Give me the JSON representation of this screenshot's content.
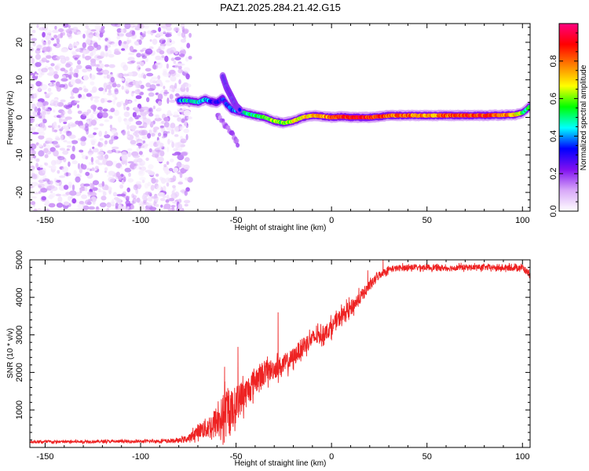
{
  "title": "PAZ1.2025.284.21.42.G15",
  "chart_data": [
    {
      "type": "heatmap",
      "title": "PAZ1.2025.284.21.42.G15",
      "xlabel": "Height of straight line (km)",
      "ylabel": "Frequency (Hz)",
      "xlim": [
        -158,
        104
      ],
      "ylim": [
        -25,
        25
      ],
      "x_ticks": [
        -150,
        -100,
        -50,
        0,
        50,
        100
      ],
      "y_ticks": [
        -20,
        -10,
        0,
        10,
        20
      ],
      "colorbar": {
        "label": "Normalized spectral amplitude",
        "range": [
          0.0,
          1.0
        ],
        "ticks": [
          "0.0",
          "0.2",
          "0.4",
          "0.6",
          "0.8"
        ],
        "colors": [
          "#ffffff",
          "#d8a8f8",
          "#8010f0",
          "#0000ff",
          "#00ffff",
          "#00ff00",
          "#ffff00",
          "#ff8000",
          "#ff0000",
          "#ff0080"
        ]
      },
      "noise_region_x": [
        -158,
        -78
      ],
      "ridge": {
        "x": [
          -80,
          -75,
          -70,
          -66,
          -63,
          -60,
          -57,
          -55,
          -52,
          -48,
          -44,
          -40,
          -35,
          -30,
          -25,
          -20,
          -15,
          -10,
          -5,
          0,
          5,
          10,
          15,
          20,
          25,
          30,
          40,
          50,
          60,
          70,
          80,
          90,
          96,
          100,
          104
        ],
        "freq": [
          4.5,
          4.5,
          4.0,
          4.8,
          4.2,
          4.0,
          5.0,
          3.5,
          2.0,
          1.5,
          1.0,
          0.5,
          0.0,
          -1.0,
          -1.5,
          -1.0,
          0.0,
          0.5,
          0.3,
          0.0,
          0.2,
          0.0,
          0.0,
          0.0,
          0.2,
          0.5,
          0.5,
          0.5,
          0.5,
          0.5,
          0.5,
          0.6,
          0.7,
          1.2,
          3.0
        ],
        "amplitude": [
          0.4,
          0.45,
          0.45,
          0.4,
          0.35,
          0.3,
          0.3,
          0.3,
          0.35,
          0.4,
          0.45,
          0.5,
          0.55,
          0.6,
          0.6,
          0.65,
          0.7,
          0.7,
          0.75,
          0.8,
          0.85,
          0.9,
          0.9,
          0.85,
          0.85,
          0.8,
          0.8,
          0.75,
          0.8,
          0.85,
          0.85,
          0.8,
          0.7,
          0.55,
          0.5
        ]
      },
      "secondary_branch": {
        "x": [
          -57,
          -55,
          -52,
          -50,
          -48
        ],
        "freq": [
          11.0,
          8.0,
          5.0,
          3.0,
          2.0
        ]
      },
      "falling_branch": {
        "x": [
          -60,
          -56,
          -52,
          -49
        ],
        "freq": [
          1.0,
          -2.0,
          -4.5,
          -7.0
        ]
      }
    },
    {
      "type": "line",
      "xlabel": "Height of straight line (km)",
      "ylabel": "SNR (10 * v/v)",
      "xlim": [
        -158,
        104
      ],
      "ylim": [
        0,
        5000
      ],
      "x_ticks": [
        -150,
        -100,
        -50,
        0,
        50,
        100
      ],
      "y_ticks": [
        1000,
        2000,
        3000,
        4000,
        5000
      ],
      "series": [
        {
          "name": "SNR",
          "color": "#ee2222",
          "x": [
            -158,
            -140,
            -120,
            -100,
            -80,
            -74,
            -70,
            -66,
            -62,
            -58,
            -55,
            -52,
            -48,
            -44,
            -40,
            -35,
            -30,
            -25,
            -20,
            -15,
            -10,
            -5,
            0,
            5,
            10,
            15,
            20,
            25,
            30,
            40,
            50,
            60,
            70,
            80,
            90,
            100,
            104
          ],
          "y": [
            150,
            150,
            160,
            160,
            180,
            250,
            450,
            500,
            600,
            800,
            900,
            1000,
            1300,
            1500,
            1800,
            2000,
            2100,
            2200,
            2400,
            2700,
            2900,
            3000,
            3200,
            3500,
            3700,
            4000,
            4300,
            4600,
            4750,
            4800,
            4800,
            4780,
            4800,
            4800,
            4780,
            4800,
            4600
          ],
          "noise": [
            40,
            40,
            40,
            40,
            60,
            120,
            180,
            280,
            380,
            500,
            650,
            550,
            450,
            400,
            380,
            320,
            280,
            260,
            250,
            250,
            230,
            220,
            220,
            220,
            220,
            180,
            140,
            110,
            90,
            80,
            80,
            80,
            80,
            80,
            80,
            90,
            90
          ],
          "spikes": [
            {
              "x": -56,
              "y": 2150
            },
            {
              "x": -49,
              "y": 2680
            },
            {
              "x": -28,
              "y": 3600
            },
            {
              "x": 19,
              "y": 4720
            },
            {
              "x": 27,
              "y": 5000
            }
          ]
        }
      ]
    }
  ]
}
